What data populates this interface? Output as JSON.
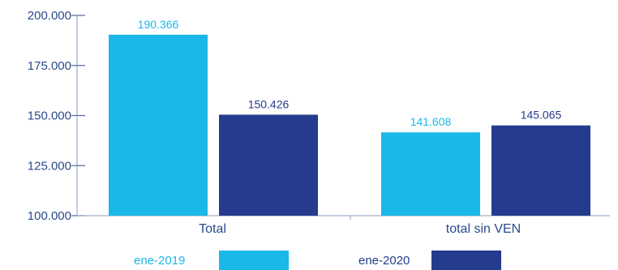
{
  "chart_data": {
    "type": "bar",
    "title": "",
    "xlabel": "",
    "ylabel": "",
    "categories": [
      "Total",
      "total sin VEN"
    ],
    "series": [
      {
        "name": "ene-2019",
        "values": [
          190366,
          141608
        ],
        "labels": [
          "190.366",
          "141.608"
        ],
        "color": "#1ab8e8",
        "label_color": "#1ab8e8"
      },
      {
        "name": "ene-2020",
        "values": [
          150426,
          145065
        ],
        "labels": [
          "150.426",
          "145.065"
        ],
        "color": "#243b8e",
        "label_color": "#243b8e"
      }
    ],
    "ylim": [
      100000,
      200000
    ],
    "yticks": [
      100000,
      125000,
      150000,
      175000,
      200000
    ],
    "ytick_labels": [
      "100.000",
      "125.000",
      "150.000",
      "175.000",
      "200.000"
    ],
    "grid": false,
    "legend": "bottom"
  }
}
